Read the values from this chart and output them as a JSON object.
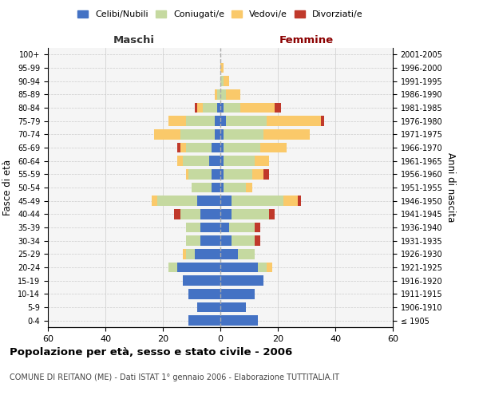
{
  "age_groups": [
    "0-4",
    "5-9",
    "10-14",
    "15-19",
    "20-24",
    "25-29",
    "30-34",
    "35-39",
    "40-44",
    "45-49",
    "50-54",
    "55-59",
    "60-64",
    "65-69",
    "70-74",
    "75-79",
    "80-84",
    "85-89",
    "90-94",
    "95-99",
    "100+"
  ],
  "birth_years": [
    "2001-2005",
    "1996-2000",
    "1991-1995",
    "1986-1990",
    "1981-1985",
    "1976-1980",
    "1971-1975",
    "1966-1970",
    "1961-1965",
    "1956-1960",
    "1951-1955",
    "1946-1950",
    "1941-1945",
    "1936-1940",
    "1931-1935",
    "1926-1930",
    "1921-1925",
    "1916-1920",
    "1911-1915",
    "1906-1910",
    "≤ 1905"
  ],
  "colors": {
    "celibi": "#4472c4",
    "coniugati": "#c5d9a0",
    "vedovi": "#fac96a",
    "divorziati": "#c0392b"
  },
  "maschi": {
    "celibi": [
      11,
      8,
      11,
      13,
      15,
      9,
      7,
      7,
      7,
      8,
      3,
      3,
      4,
      3,
      2,
      2,
      1,
      0,
      0,
      0,
      0
    ],
    "coniugati": [
      0,
      0,
      0,
      0,
      3,
      3,
      5,
      5,
      7,
      14,
      7,
      8,
      9,
      9,
      12,
      10,
      5,
      1,
      0,
      0,
      0
    ],
    "vedovi": [
      0,
      0,
      0,
      0,
      0,
      1,
      0,
      0,
      0,
      2,
      0,
      1,
      2,
      2,
      9,
      6,
      2,
      1,
      0,
      0,
      0
    ],
    "divorziati": [
      0,
      0,
      0,
      0,
      0,
      0,
      0,
      0,
      2,
      0,
      0,
      0,
      0,
      1,
      0,
      0,
      1,
      0,
      0,
      0,
      0
    ]
  },
  "femmine": {
    "celibi": [
      13,
      9,
      12,
      15,
      13,
      6,
      4,
      3,
      4,
      4,
      1,
      1,
      1,
      1,
      1,
      2,
      1,
      0,
      0,
      0,
      0
    ],
    "coniugati": [
      0,
      0,
      0,
      0,
      3,
      6,
      8,
      9,
      13,
      18,
      8,
      10,
      11,
      13,
      14,
      14,
      6,
      2,
      1,
      0,
      0
    ],
    "vedovi": [
      0,
      0,
      0,
      0,
      2,
      0,
      0,
      0,
      0,
      5,
      2,
      4,
      5,
      9,
      16,
      19,
      12,
      5,
      2,
      1,
      0
    ],
    "divorziati": [
      0,
      0,
      0,
      0,
      0,
      0,
      2,
      2,
      2,
      1,
      0,
      2,
      0,
      0,
      0,
      1,
      2,
      0,
      0,
      0,
      0
    ]
  },
  "xlim": 60,
  "title": "Popolazione per età, sesso e stato civile - 2006",
  "subtitle": "COMUNE DI REITANO (ME) - Dati ISTAT 1° gennaio 2006 - Elaborazione TUTTITALIA.IT",
  "ylabel_left": "Fasce di età",
  "ylabel_right": "Anni di nascita",
  "xlabel_maschi": "Maschi",
  "xlabel_femmine": "Femmine",
  "legend_labels": [
    "Celibi/Nubili",
    "Coniugati/e",
    "Vedovi/e",
    "Divorziati/e"
  ],
  "bg_color": "#f5f5f5",
  "grid_color": "#cccccc"
}
